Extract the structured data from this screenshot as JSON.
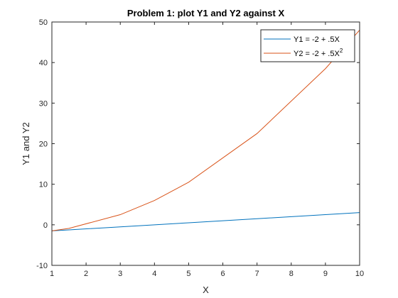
{
  "chart_data": {
    "type": "line",
    "title": "Problem 1: plot Y1 and Y2 against X",
    "xlabel": "X",
    "ylabel": "Y1 and Y2",
    "xlim": [
      1,
      10
    ],
    "ylim": [
      -10,
      50
    ],
    "xticks": [
      1,
      2,
      3,
      4,
      5,
      6,
      7,
      8,
      9,
      10
    ],
    "yticks": [
      -10,
      0,
      10,
      20,
      30,
      40,
      50
    ],
    "grid": false,
    "legend_position": "top-right",
    "series": [
      {
        "name": "Y1 = -2 + .5X",
        "color": "#0072BD",
        "x": [
          1,
          1.5,
          3,
          4,
          5,
          7,
          9,
          10
        ],
        "y": [
          -1.5,
          -1.25,
          -0.5,
          0,
          0.5,
          1.5,
          2.5,
          3
        ]
      },
      {
        "name": "Y2 = -2 + .5X",
        "name_superscript": "2",
        "color": "#D95319",
        "x": [
          1,
          1.5,
          3,
          4,
          5,
          7,
          9,
          10
        ],
        "y": [
          -1.5,
          -0.875,
          2.5,
          6,
          10.5,
          22.5,
          38.5,
          48
        ]
      }
    ]
  }
}
